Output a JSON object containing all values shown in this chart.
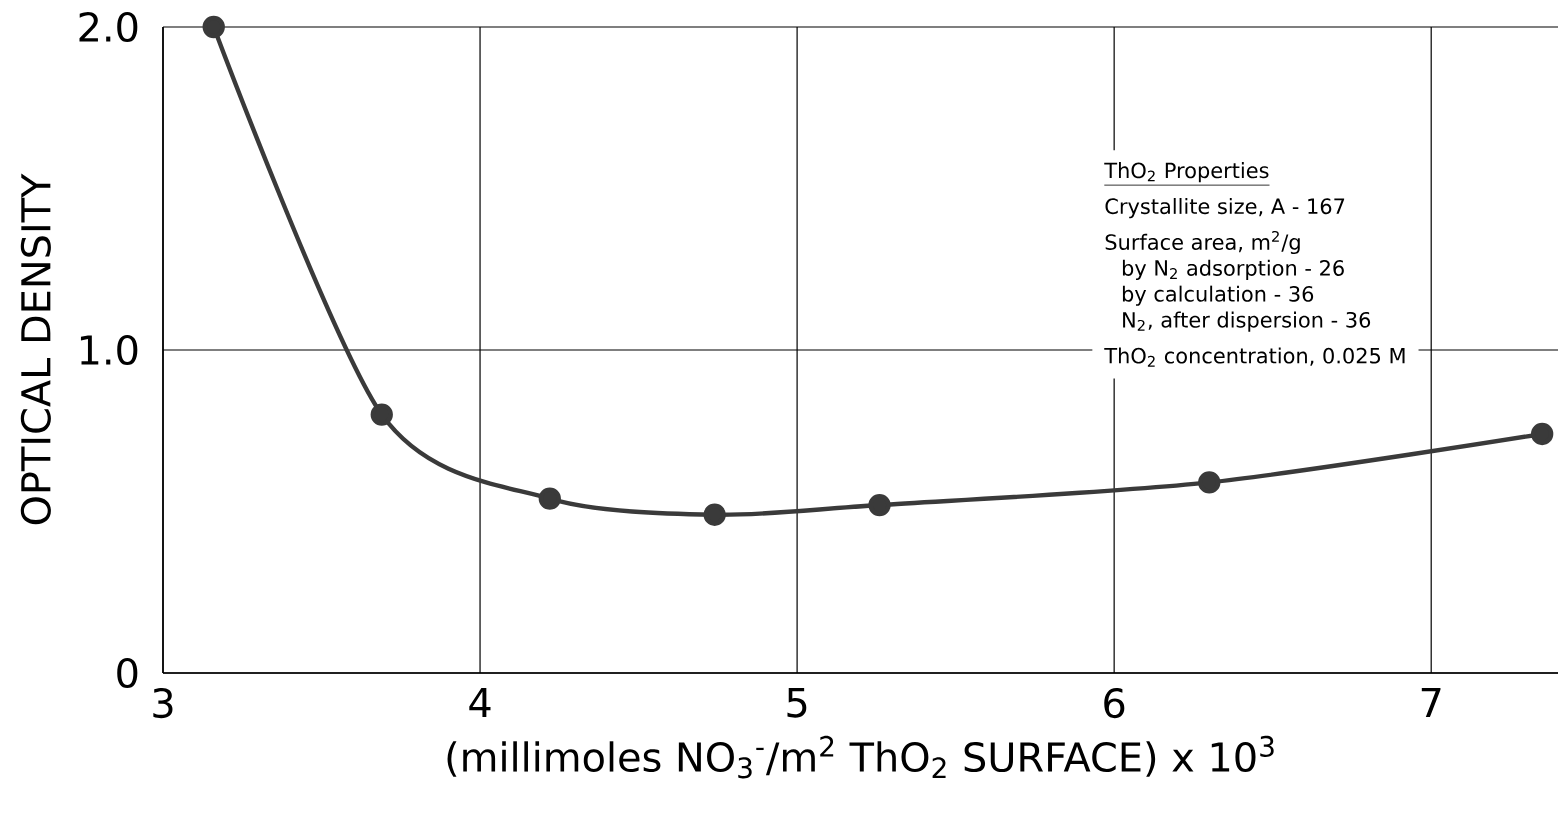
{
  "chart_data": {
    "type": "line",
    "xlabel": "(millimoles NO$_{3}$$^{-}$/m$^{2}$ ThO$_{2}$ SURFACE) x 10$^{3}$",
    "ylabel": "OPTICAL DENSITY",
    "x": [
      3.16,
      3.69,
      4.22,
      4.74,
      5.26,
      6.3,
      7.35
    ],
    "values": [
      2.0,
      0.8,
      0.54,
      0.49,
      0.52,
      0.59,
      0.74
    ],
    "color": "#3a3a3a",
    "marker": "circle",
    "line_style": "solid",
    "grid": true,
    "xlim": [
      3,
      7.4
    ],
    "ylim": [
      0,
      2.0
    ],
    "xticks": [
      3,
      4,
      5,
      6,
      7
    ],
    "yticks": [
      0,
      {
        "value": 1,
        "label": "1.0"
      },
      {
        "value": 2,
        "label": "2.0"
      }
    ],
    "annotations": [
      "ThO$_{2}$ Properties",
      "Crystallite size, A - 167",
      "Surface area, m$^{2}$/g",
      "by N$_{2}$ adsorption - 26",
      "by calculation - 36",
      "N$_{2}$, after dispersion - 36",
      "ThO$_{2}$ concentration, 0.025 M"
    ]
  }
}
